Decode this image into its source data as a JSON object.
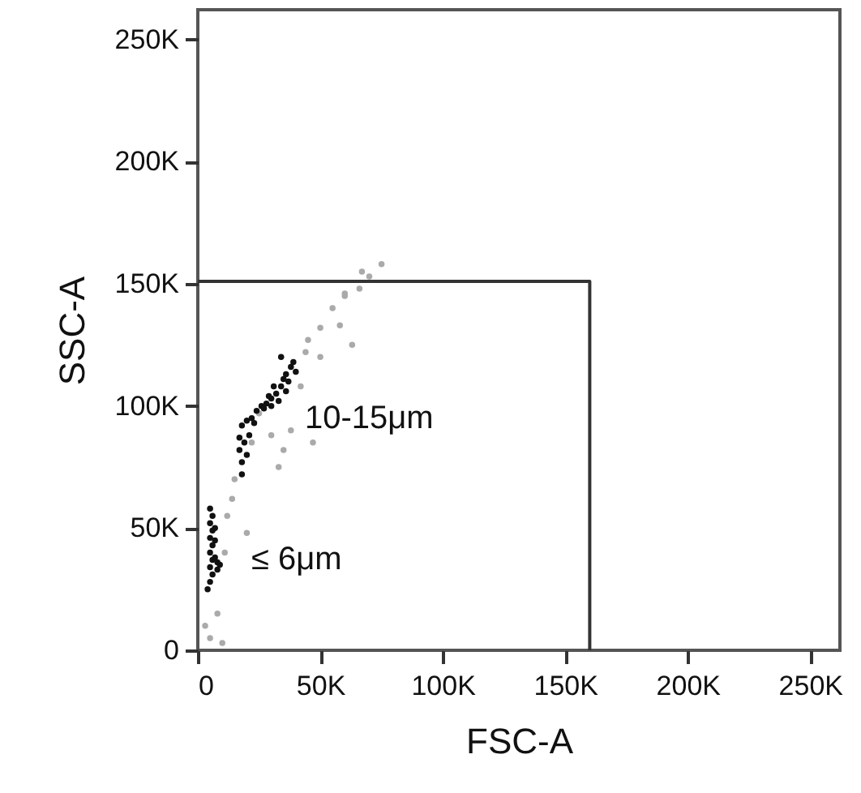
{
  "chart_data": {
    "type": "scatter",
    "xlabel": "FSC-A",
    "ylabel": "SSC-A",
    "xlim": [
      0,
      262144
    ],
    "ylim": [
      0,
      262144
    ],
    "xticks": [
      {
        "value": 0,
        "label": "0"
      },
      {
        "value": 50000,
        "label": "50K"
      },
      {
        "value": 100000,
        "label": "100K"
      },
      {
        "value": 150000,
        "label": "150K"
      },
      {
        "value": 200000,
        "label": "200K"
      },
      {
        "value": 250000,
        "label": "250K"
      }
    ],
    "yticks": [
      {
        "value": 0,
        "label": "0"
      },
      {
        "value": 50000,
        "label": "50K"
      },
      {
        "value": 100000,
        "label": "100K"
      },
      {
        "value": 150000,
        "label": "150K"
      },
      {
        "value": 200000,
        "label": "200K"
      },
      {
        "value": 250000,
        "label": "250K"
      }
    ],
    "grid": false,
    "series": [
      {
        "marker": "circle",
        "color": "#aaaaaa",
        "x": [
          3000,
          5000,
          10000,
          8000,
          11000,
          14000,
          20000,
          12000,
          15000,
          22000,
          25000,
          35000,
          33000,
          38000,
          42000,
          45000,
          50000,
          55000,
          60000,
          66000,
          58000,
          63000,
          70000,
          75000,
          67000,
          60000,
          44000,
          50000,
          47000,
          30000
        ],
        "values": [
          10000,
          5000,
          3000,
          15000,
          40000,
          62000,
          48000,
          55000,
          70000,
          85000,
          97000,
          82000,
          75000,
          90000,
          108000,
          127000,
          132000,
          140000,
          145000,
          148000,
          133000,
          125000,
          153000,
          158000,
          155000,
          146000,
          122000,
          120000,
          85000,
          88000
        ]
      },
      {
        "marker": "circle",
        "color": "#111111",
        "x": [
          5000,
          5000,
          5000,
          5000,
          5000,
          5000,
          6000,
          6000,
          6000,
          6000,
          6000,
          7000,
          7000,
          8000,
          8000,
          4000,
          9000,
          7000,
          18000,
          18000,
          17000,
          17000,
          18000,
          20000,
          19000,
          20000,
          21000,
          22000,
          24000,
          26000,
          28000,
          30000,
          32000,
          34000,
          35000,
          36000,
          38000,
          39000,
          37000,
          33000,
          30000,
          27000,
          23000,
          34000,
          31000,
          29000,
          36000,
          40000
        ],
        "values": [
          58000,
          52000,
          46000,
          40000,
          34000,
          28000,
          55000,
          49000,
          43000,
          37000,
          31000,
          45000,
          38000,
          36000,
          33000,
          25000,
          35000,
          50000,
          72000,
          77000,
          82000,
          87000,
          92000,
          94000,
          85000,
          80000,
          88000,
          95000,
          98000,
          100000,
          101000,
          103000,
          105000,
          108000,
          111000,
          113000,
          116000,
          118000,
          110000,
          102000,
          100000,
          99000,
          93000,
          120000,
          108000,
          104000,
          106000,
          114000
        ]
      },
      {
        "type": "line",
        "color": "#333333",
        "x": [
          0,
          160000,
          160000
        ],
        "values": [
          151000,
          151000,
          0
        ]
      }
    ],
    "annotations": [
      "10-15μm",
      "≤ 6μm"
    ]
  }
}
